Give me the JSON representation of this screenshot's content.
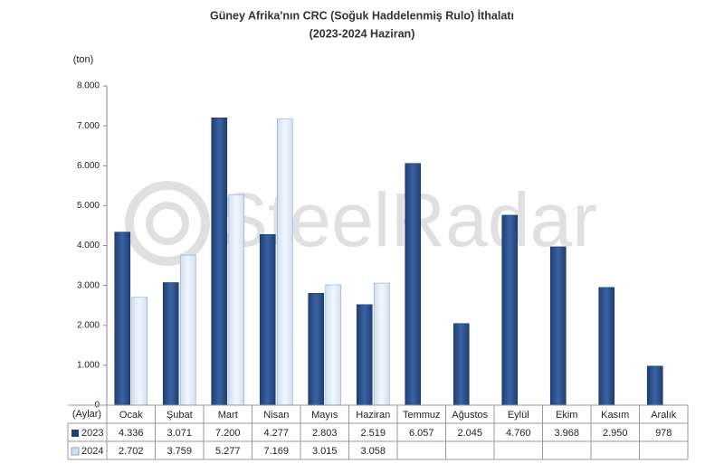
{
  "chart_data": {
    "type": "bar",
    "title": "Güney Afrika'nın CRC (Soğuk Haddelenmiş Rulo) İthalatı",
    "subtitle": "(2023-2024 Haziran)",
    "y_label": "(ton)",
    "table_label": "(Aylar)",
    "watermark": "SteelRadar",
    "categories": [
      "Ocak",
      "Şubat",
      "Mart",
      "Nisan",
      "Mayıs",
      "Haziran",
      "Temmuz",
      "Ağustos",
      "Eylül",
      "Ekim",
      "Kasım",
      "Aralık"
    ],
    "series": [
      {
        "name": "2023",
        "color": "#1f3f75",
        "values": [
          4336,
          3071,
          7200,
          4277,
          2803,
          2519,
          6057,
          2045,
          4760,
          3968,
          2950,
          978
        ],
        "value_labels": [
          "4.336",
          "3.071",
          "7.200",
          "4.277",
          "2.803",
          "2.519",
          "6.057",
          "2.045",
          "4.760",
          "3.968",
          "2.950",
          "978"
        ]
      },
      {
        "name": "2024",
        "color": "#cfe0f5",
        "values": [
          2702,
          3759,
          5277,
          7169,
          3015,
          3058,
          null,
          null,
          null,
          null,
          null,
          null
        ],
        "value_labels": [
          "2.702",
          "3.759",
          "5.277",
          "7.169",
          "3.015",
          "3.058",
          null,
          null,
          null,
          null,
          null,
          null
        ]
      }
    ],
    "ylim": [
      0,
      8000
    ],
    "yticks": [
      0,
      {
        "value": 1000,
        "label": "1.000"
      },
      {
        "value": 2000,
        "label": "2.000"
      },
      {
        "value": 3000,
        "label": "3.000"
      },
      {
        "value": 4000,
        "label": "4.000"
      },
      {
        "value": 5000,
        "label": "5.000"
      },
      {
        "value": 6000,
        "label": "6.000"
      },
      {
        "value": 7000,
        "label": "7.000"
      },
      {
        "value": 8000,
        "label": "8.000"
      }
    ],
    "grid": false
  }
}
